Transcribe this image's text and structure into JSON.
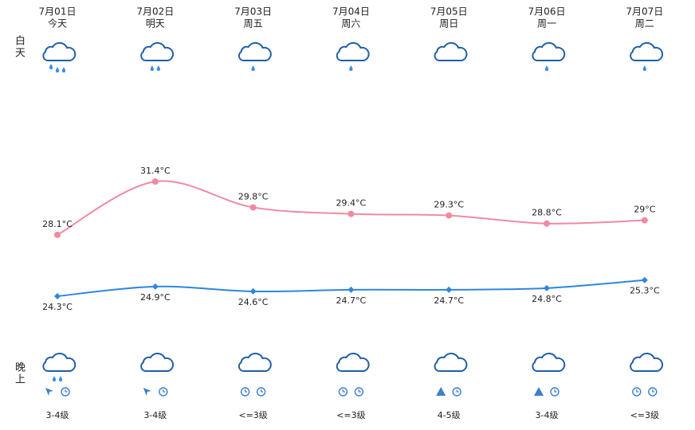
{
  "chart_data": {
    "type": "line",
    "day_label": "白天",
    "night_label": "晚上",
    "categories": [
      "7月01日",
      "7月02日",
      "7月03日",
      "7月04日",
      "7月05日",
      "7月06日",
      "7月07日"
    ],
    "weekdays": [
      "今天",
      "明天",
      "周五",
      "周六",
      "周日",
      "周一",
      "周二"
    ],
    "series": [
      {
        "name": "high",
        "color": "#f08aa0",
        "values": [
          28.1,
          31.4,
          29.8,
          29.4,
          29.3,
          28.8,
          29
        ],
        "value_labels": [
          "28.1°C",
          "31.4°C",
          "29.8°C",
          "29.4°C",
          "29.3°C",
          "28.8°C",
          "29°C"
        ]
      },
      {
        "name": "low",
        "color": "#2e86de",
        "values": [
          24.3,
          24.9,
          24.6,
          24.7,
          24.7,
          24.8,
          25.3
        ],
        "value_labels": [
          "24.3°C",
          "24.9°C",
          "24.6°C",
          "24.7°C",
          "24.7°C",
          "24.8°C",
          "25.3°C"
        ]
      }
    ],
    "wind": [
      "3-4级",
      "3-4级",
      "<=3级",
      "<=3级",
      "4-5级",
      "3-4级",
      "<=3级"
    ]
  }
}
